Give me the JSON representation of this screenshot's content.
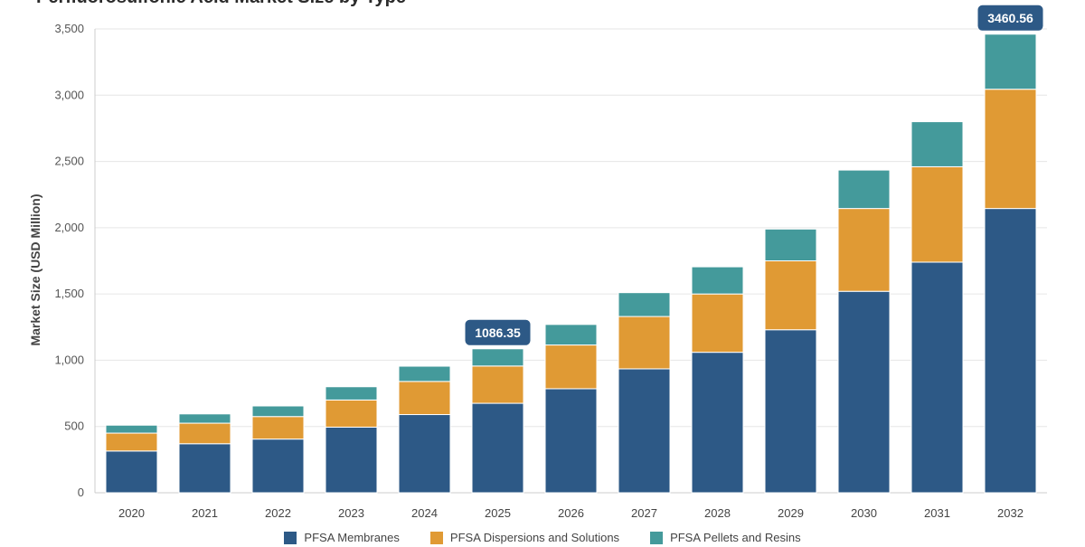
{
  "chart_data": {
    "type": "bar",
    "stacked": true,
    "title": "Perfluorosulfonic Acid Market Size by Type",
    "ylabel": "Market Size (USD Million)",
    "xlabel": "",
    "ylim": [
      0,
      3500
    ],
    "yticks": [
      "0",
      "500",
      "1,000",
      "1,500",
      "2,000",
      "2,500",
      "3,000",
      "3,500"
    ],
    "categories": [
      "2020",
      "2021",
      "2022",
      "2023",
      "2024",
      "2025",
      "2026",
      "2027",
      "2028",
      "2029",
      "2030",
      "2031",
      "2032"
    ],
    "series": [
      {
        "name": "PFSA Membranes",
        "color": "#2d5986",
        "values": [
          315,
          370,
          405,
          495,
          590,
          675,
          785,
          935,
          1060,
          1230,
          1520,
          1740,
          2145
        ]
      },
      {
        "name": "PFSA Dispersions and Solutions",
        "color": "#e09a34",
        "values": [
          135,
          155,
          170,
          205,
          250,
          281.35,
          330,
          395,
          440,
          520,
          625,
          720,
          900
        ]
      },
      {
        "name": "PFSA Pellets and Resins",
        "color": "#449a9b",
        "values": [
          60,
          70,
          80,
          100,
          115,
          130,
          155,
          180,
          205,
          240,
          290,
          340,
          415.56
        ]
      }
    ],
    "annotations": [
      {
        "category": "2025",
        "text": "1086.35"
      },
      {
        "category": "2032",
        "text": "3460.56"
      }
    ],
    "grid": true,
    "legend_position": "bottom"
  }
}
